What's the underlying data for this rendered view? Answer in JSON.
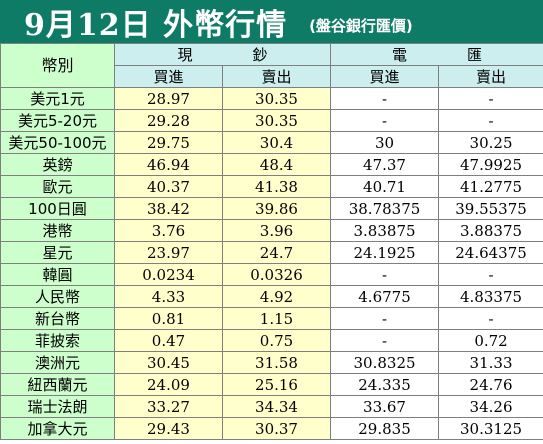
{
  "header": {
    "title": "9月12日 外幣行情",
    "source": "(盤谷銀行匯價)"
  },
  "table": {
    "currency_col_label": "幣別",
    "groups": [
      "現鈔",
      "電匯"
    ],
    "subheaders": [
      "買進",
      "賣出",
      "買進",
      "賣出"
    ],
    "rows": [
      {
        "currency": "美元1元",
        "cash_buy": "28.97",
        "cash_sell": "30.35",
        "wire_buy": "-",
        "wire_sell": "-"
      },
      {
        "currency": "美元5-20元",
        "cash_buy": "29.28",
        "cash_sell": "30.35",
        "wire_buy": "-",
        "wire_sell": "-"
      },
      {
        "currency": "美元50-100元",
        "cash_buy": "29.75",
        "cash_sell": "30.4",
        "wire_buy": "30",
        "wire_sell": "30.25"
      },
      {
        "currency": "英鎊",
        "cash_buy": "46.94",
        "cash_sell": "48.4",
        "wire_buy": "47.37",
        "wire_sell": "47.9925"
      },
      {
        "currency": "歐元",
        "cash_buy": "40.37",
        "cash_sell": "41.38",
        "wire_buy": "40.71",
        "wire_sell": "41.2775"
      },
      {
        "currency": "100日圓",
        "cash_buy": "38.42",
        "cash_sell": "39.86",
        "wire_buy": "38.78375",
        "wire_sell": "39.55375"
      },
      {
        "currency": "港幣",
        "cash_buy": "3.76",
        "cash_sell": "3.96",
        "wire_buy": "3.83875",
        "wire_sell": "3.88375"
      },
      {
        "currency": "星元",
        "cash_buy": "23.97",
        "cash_sell": "24.7",
        "wire_buy": "24.1925",
        "wire_sell": "24.64375"
      },
      {
        "currency": "韓圓",
        "cash_buy": "0.0234",
        "cash_sell": "0.0326",
        "wire_buy": "-",
        "wire_sell": "-"
      },
      {
        "currency": "人民幣",
        "cash_buy": "4.33",
        "cash_sell": "4.92",
        "wire_buy": "4.6775",
        "wire_sell": "4.83375"
      },
      {
        "currency": "新台幣",
        "cash_buy": "0.81",
        "cash_sell": "1.15",
        "wire_buy": "-",
        "wire_sell": "-"
      },
      {
        "currency": "菲披索",
        "cash_buy": "0.47",
        "cash_sell": "0.75",
        "wire_buy": "-",
        "wire_sell": "0.72"
      },
      {
        "currency": "澳洲元",
        "cash_buy": "30.45",
        "cash_sell": "31.58",
        "wire_buy": "30.8325",
        "wire_sell": "31.33"
      },
      {
        "currency": "紐西蘭元",
        "cash_buy": "24.09",
        "cash_sell": "25.16",
        "wire_buy": "24.335",
        "wire_sell": "24.76"
      },
      {
        "currency": "瑞士法朗",
        "cash_buy": "33.27",
        "cash_sell": "34.34",
        "wire_buy": "33.67",
        "wire_sell": "34.26"
      },
      {
        "currency": "加拿大元",
        "cash_buy": "29.43",
        "cash_sell": "30.37",
        "wire_buy": "29.835",
        "wire_sell": "30.3125"
      }
    ]
  },
  "colors": {
    "title_bg": "#0e7b66",
    "header_bg": "#cdeeee",
    "label_bg": "#ccffcc",
    "cash_bg": "#ffffcc",
    "wire_bg": "#ffffff"
  }
}
